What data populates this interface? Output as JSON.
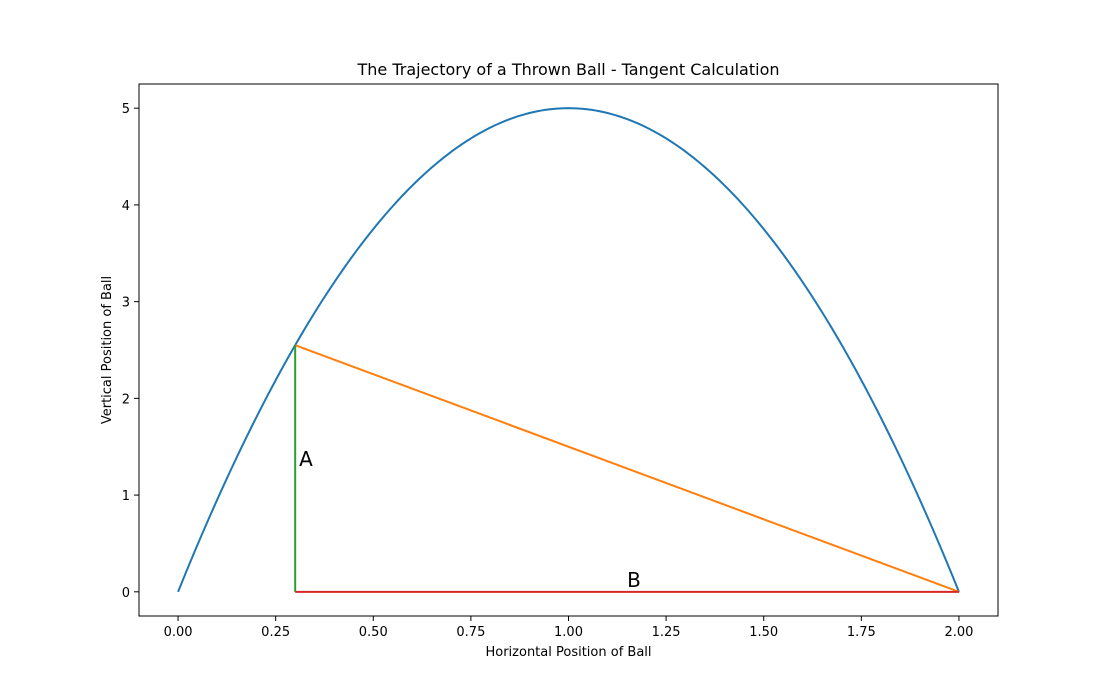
{
  "chart_data": {
    "type": "line",
    "title": "The Trajectory of a Thrown Ball - Tangent Calculation",
    "xlabel": "Horizontal Position of Ball",
    "ylabel": "Vertical Position of Ball",
    "xlim": [
      -0.1,
      2.1
    ],
    "ylim": [
      -0.25,
      5.25
    ],
    "xticks": [
      0.0,
      0.25,
      0.5,
      0.75,
      1.0,
      1.25,
      1.5,
      1.75,
      2.0
    ],
    "xtick_labels": [
      "0.00",
      "0.25",
      "0.50",
      "0.75",
      "1.00",
      "1.25",
      "1.50",
      "1.75",
      "2.00"
    ],
    "yticks": [
      0,
      1,
      2,
      3,
      4,
      5
    ],
    "ytick_labels": [
      "0",
      "1",
      "2",
      "3",
      "4",
      "5"
    ],
    "grid": false,
    "legend": "none",
    "series": [
      {
        "kind": "curve",
        "equation": "y = -5x^2 + 10x",
        "x_range": [
          0.0,
          2.0
        ],
        "color": "#1f77b4"
      },
      {
        "kind": "segment",
        "points": [
          [
            0.3,
            2.55
          ],
          [
            2.0,
            0.0
          ]
        ],
        "color": "#ff7f0e"
      },
      {
        "kind": "segment",
        "points": [
          [
            0.3,
            0.0
          ],
          [
            0.3,
            2.55
          ]
        ],
        "color": "#2ca02c"
      },
      {
        "kind": "segment",
        "points": [
          [
            0.3,
            0.0
          ],
          [
            2.0,
            0.0
          ]
        ],
        "color": "#d62728"
      }
    ],
    "annotations": [
      {
        "text": "A",
        "x": 0.31,
        "y": 1.3
      },
      {
        "text": "B",
        "x": 1.15,
        "y": 0.05
      }
    ]
  }
}
